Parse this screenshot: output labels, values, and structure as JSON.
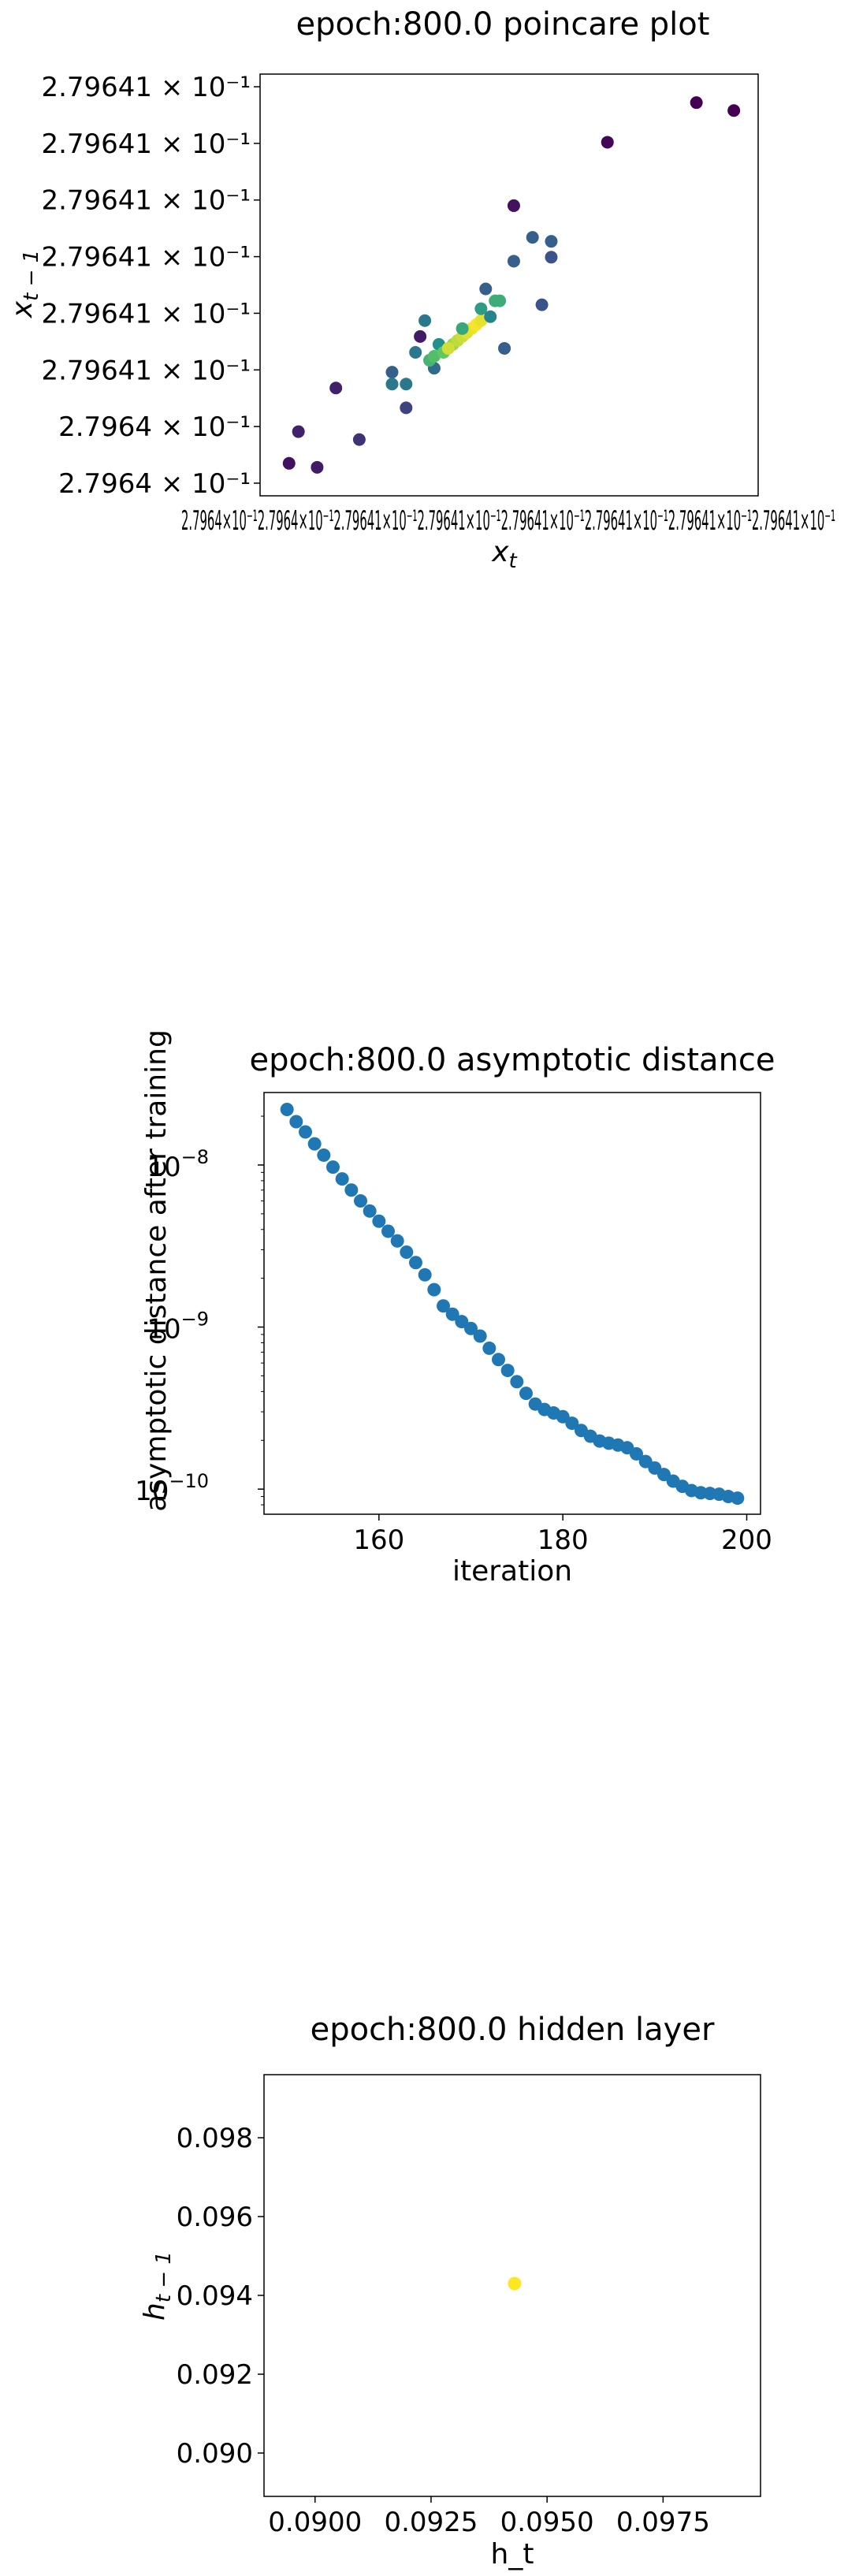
{
  "chart_data": [
    {
      "type": "scatter",
      "title": "epoch:800.0 poincare plot",
      "xlabel": "x_t",
      "ylabel": "x_{t-1}",
      "x_tick_labels_overlapping": "2.7964×10⁻¹2.7964×10⁻¹2.79641×10⁻¹2.79641×10⁻¹2.79641×10⁻¹2.79641×10⁻¹2.79641×10⁻¹2.79641×10⁻¹",
      "y_tick_labels": [
        "2.7964 × 10⁻¹",
        "2.7964 × 10⁻¹",
        "2.79641 × 10⁻¹",
        "2.79641 × 10⁻¹",
        "2.79641 × 10⁻¹",
        "2.79641 × 10⁻¹",
        "2.79641 × 10⁻¹",
        "2.79641 × 10⁻¹"
      ],
      "colormap": "viridis",
      "grid": false,
      "xlim": [
        0,
        1
      ],
      "ylim": [
        0,
        1
      ],
      "points": [
        {
          "x": 0.03,
          "y": 0.05,
          "c": 0.05
        },
        {
          "x": 0.09,
          "y": 0.04,
          "c": 0.08
        },
        {
          "x": 0.05,
          "y": 0.13,
          "c": 0.1
        },
        {
          "x": 0.18,
          "y": 0.11,
          "c": 0.15
        },
        {
          "x": 0.13,
          "y": 0.24,
          "c": 0.1
        },
        {
          "x": 0.31,
          "y": 0.37,
          "c": 0.08
        },
        {
          "x": 0.28,
          "y": 0.19,
          "c": 0.2
        },
        {
          "x": 0.25,
          "y": 0.28,
          "c": 0.3
        },
        {
          "x": 0.25,
          "y": 0.25,
          "c": 0.4
        },
        {
          "x": 0.28,
          "y": 0.25,
          "c": 0.4
        },
        {
          "x": 0.3,
          "y": 0.33,
          "c": 0.4
        },
        {
          "x": 0.32,
          "y": 0.41,
          "c": 0.4
        },
        {
          "x": 0.34,
          "y": 0.29,
          "c": 0.35
        },
        {
          "x": 0.35,
          "y": 0.35,
          "c": 0.5
        },
        {
          "x": 0.33,
          "y": 0.31,
          "c": 0.65
        },
        {
          "x": 0.34,
          "y": 0.32,
          "c": 0.7
        },
        {
          "x": 0.36,
          "y": 0.33,
          "c": 0.75
        },
        {
          "x": 0.38,
          "y": 0.35,
          "c": 0.85
        },
        {
          "x": 0.39,
          "y": 0.36,
          "c": 0.9
        },
        {
          "x": 0.4,
          "y": 0.37,
          "c": 0.92
        },
        {
          "x": 0.41,
          "y": 0.38,
          "c": 0.95
        },
        {
          "x": 0.42,
          "y": 0.39,
          "c": 0.97
        },
        {
          "x": 0.43,
          "y": 0.4,
          "c": 0.99
        },
        {
          "x": 0.44,
          "y": 0.41,
          "c": 0.96
        },
        {
          "x": 0.37,
          "y": 0.34,
          "c": 0.93
        },
        {
          "x": 0.4,
          "y": 0.39,
          "c": 0.6
        },
        {
          "x": 0.44,
          "y": 0.44,
          "c": 0.55
        },
        {
          "x": 0.46,
          "y": 0.42,
          "c": 0.45
        },
        {
          "x": 0.47,
          "y": 0.46,
          "c": 0.62
        },
        {
          "x": 0.48,
          "y": 0.46,
          "c": 0.62
        },
        {
          "x": 0.49,
          "y": 0.34,
          "c": 0.3
        },
        {
          "x": 0.45,
          "y": 0.49,
          "c": 0.3
        },
        {
          "x": 0.51,
          "y": 0.56,
          "c": 0.3
        },
        {
          "x": 0.55,
          "y": 0.62,
          "c": 0.3
        },
        {
          "x": 0.59,
          "y": 0.61,
          "c": 0.3
        },
        {
          "x": 0.59,
          "y": 0.57,
          "c": 0.25
        },
        {
          "x": 0.57,
          "y": 0.45,
          "c": 0.25
        },
        {
          "x": 0.51,
          "y": 0.7,
          "c": 0.05
        },
        {
          "x": 0.71,
          "y": 0.86,
          "c": 0.02
        },
        {
          "x": 0.9,
          "y": 0.96,
          "c": 0.0
        },
        {
          "x": 0.98,
          "y": 0.94,
          "c": 0.0
        }
      ]
    },
    {
      "type": "scatter",
      "title": "epoch:800.0 asymptotic distance",
      "xlabel": "iteration",
      "ylabel": "asymptotic distance after training",
      "yscale": "log",
      "xlim": [
        147.5,
        201.5
      ],
      "ylim": [
        7e-11,
        2.8e-08
      ],
      "x_ticks": [
        160,
        180,
        200
      ],
      "y_ticks": [
        1e-08,
        1e-09,
        1e-10
      ],
      "x_tick_labels": [
        "160",
        "180",
        "200"
      ],
      "y_tick_labels": [
        "10",
        "10",
        "10"
      ],
      "y_tick_exponents": [
        "−8",
        "−9",
        "−10"
      ],
      "color": "#1f77b4",
      "grid": false,
      "x": [
        150,
        151,
        152,
        153,
        154,
        155,
        156,
        157,
        158,
        159,
        160,
        161,
        162,
        163,
        164,
        165,
        166,
        167,
        168,
        169,
        170,
        171,
        172,
        173,
        174,
        175,
        176,
        177,
        178,
        179,
        180,
        181,
        182,
        183,
        184,
        185,
        186,
        187,
        188,
        189,
        190,
        191,
        192,
        193,
        194,
        195,
        196,
        197,
        198,
        199
      ],
      "y": [
        2.2e-08,
        1.85e-08,
        1.6e-08,
        1.35e-08,
        1.15e-08,
        9.7e-09,
        8.2e-09,
        7e-09,
        6e-09,
        5.2e-09,
        4.5e-09,
        3.9e-09,
        3.4e-09,
        2.9e-09,
        2.5e-09,
        2.1e-09,
        1.7e-09,
        1.35e-09,
        1.2e-09,
        1.08e-09,
        9.8e-10,
        8.8e-10,
        7.4e-10,
        6.3e-10,
        5.4e-10,
        4.6e-10,
        3.9e-10,
        3.35e-10,
        3.1e-10,
        2.95e-10,
        2.8e-10,
        2.55e-10,
        2.3e-10,
        2.12e-10,
        1.98e-10,
        1.92e-10,
        1.87e-10,
        1.8e-10,
        1.65e-10,
        1.48e-10,
        1.35e-10,
        1.23e-10,
        1.12e-10,
        1.04e-10,
        9.8e-11,
        9.5e-11,
        9.4e-11,
        9.3e-11,
        9e-11,
        8.8e-11
      ]
    },
    {
      "type": "scatter",
      "title": "epoch:800.0 hidden layer",
      "xlabel": "h_t",
      "ylabel": "h_{t-1}",
      "xlim": [
        0.0889,
        0.0996
      ],
      "ylim": [
        0.0889,
        0.0996
      ],
      "x_ticks": [
        0.09,
        0.0925,
        0.095,
        0.0975
      ],
      "y_ticks": [
        0.09,
        0.092,
        0.094,
        0.096,
        0.098
      ],
      "x_tick_labels": [
        "0.0900",
        "0.0925",
        "0.0950",
        "0.0975"
      ],
      "y_tick_labels": [
        "0.090",
        "0.092",
        "0.094",
        "0.096",
        "0.098"
      ],
      "color": "#fde725",
      "grid": false,
      "points": [
        {
          "x": 0.0943,
          "y": 0.0943
        }
      ]
    }
  ]
}
